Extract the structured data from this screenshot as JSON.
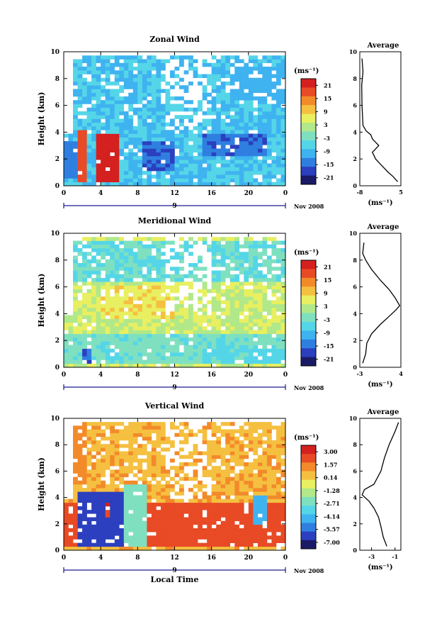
{
  "chart_data": [
    {
      "type": "heatmap",
      "title": "Zonal Wind",
      "ylabel": "Height (km)",
      "xlabel": "",
      "xlim": [
        0,
        24
      ],
      "ylim": [
        0,
        10
      ],
      "x_ticks": [
        "0",
        "4",
        "8",
        "12",
        "16",
        "20",
        "0"
      ],
      "y_ticks": [
        "0",
        "2",
        "4",
        "6",
        "8",
        "10"
      ],
      "date_marker": "9",
      "date_label": "Nov 2008",
      "colorbar": {
        "unit": "(ms⁻¹)",
        "ticks": [
          "21",
          "15",
          "9",
          "3",
          "-3",
          "-9",
          "-15",
          "-21"
        ],
        "range": [
          -24,
          24
        ]
      },
      "fill_value_estimate": -8,
      "regions": [
        {
          "x": [
            1.6,
            2.6
          ],
          "y": [
            0.2,
            4.2
          ],
          "v": 18
        },
        {
          "x": [
            3.5,
            6.0
          ],
          "y": [
            0.3,
            4.0
          ],
          "v": 22
        },
        {
          "x": [
            8.5,
            12.0
          ],
          "y": [
            1.0,
            3.2
          ],
          "v": -16
        },
        {
          "x": [
            0.0,
            1.6
          ],
          "y": [
            0.6,
            3.3
          ],
          "v": -14
        },
        {
          "x": [
            15.0,
            22.0
          ],
          "y": [
            2.2,
            3.8
          ],
          "v": -15
        },
        {
          "x": [
            18.0,
            24.0
          ],
          "y": [
            6.5,
            9.0
          ],
          "v": -10
        }
      ],
      "average_profile": {
        "title": "Average",
        "xlabel": "(ms⁻¹)",
        "xlim": [
          -8,
          5
        ],
        "x_ticks": [
          "-8",
          "5"
        ],
        "y_ticks": [
          "0",
          "2",
          "4",
          "6",
          "8",
          "10"
        ],
        "x": [
          4.0,
          2.5,
          1.0,
          -1.0,
          -3.0,
          -4.0,
          -2.0,
          -4.0,
          -4.5,
          -6.0,
          -7.0,
          -7.3,
          -7.4,
          -7.0,
          -7.3
        ],
        "y": [
          0.3,
          0.7,
          1.0,
          1.5,
          2.0,
          2.5,
          3.0,
          3.5,
          3.8,
          4.1,
          4.5,
          6.0,
          7.5,
          8.5,
          9.5
        ]
      }
    },
    {
      "type": "heatmap",
      "title": "Meridional Wind",
      "ylabel": "Height (km)",
      "xlabel": "",
      "xlim": [
        0,
        24
      ],
      "ylim": [
        0,
        10
      ],
      "x_ticks": [
        "0",
        "4",
        "8",
        "12",
        "16",
        "20",
        "0"
      ],
      "y_ticks": [
        "0",
        "2",
        "4",
        "6",
        "8",
        "10"
      ],
      "date_marker": "9",
      "date_label": "Nov 2008",
      "colorbar": {
        "unit": "(ms⁻¹)",
        "ticks": [
          "21",
          "15",
          "9",
          "3",
          "-3",
          "-9",
          "-15",
          "-21"
        ],
        "range": [
          -24,
          24
        ]
      },
      "fill_value_estimate": 4,
      "regions": [
        {
          "x": [
            0.0,
            24.0
          ],
          "y": [
            6.5,
            9.5
          ],
          "v": -4
        },
        {
          "x": [
            0.0,
            24.0
          ],
          "y": [
            0.2,
            2.5
          ],
          "v": -3
        },
        {
          "x": [
            1.8,
            3.0
          ],
          "y": [
            0.3,
            1.5
          ],
          "v": -15
        },
        {
          "x": [
            4.0,
            12.0
          ],
          "y": [
            3.5,
            6.0
          ],
          "v": 7
        },
        {
          "x": [
            15.0,
            24.0
          ],
          "y": [
            0.3,
            1.8
          ],
          "v": -5
        }
      ],
      "average_profile": {
        "title": "Average",
        "xlabel": "(ms⁻¹)",
        "xlim": [
          -3,
          4
        ],
        "x_ticks": [
          "-3",
          "4"
        ],
        "y_ticks": [
          "0",
          "2",
          "4",
          "6",
          "8",
          "10"
        ],
        "x": [
          -2.5,
          -2.0,
          -1.8,
          -1.0,
          0.5,
          2.0,
          3.2,
          3.8,
          3.0,
          2.0,
          0.5,
          -1.0,
          -2.0,
          -2.5,
          -2.3
        ],
        "y": [
          0.3,
          1.0,
          1.8,
          2.5,
          3.2,
          3.8,
          4.3,
          4.6,
          5.2,
          5.8,
          6.5,
          7.3,
          8.0,
          8.5,
          9.3
        ]
      }
    },
    {
      "type": "heatmap",
      "title": "Vertical Wind",
      "ylabel": "Height (km)",
      "xlabel": "Local Time",
      "xlim": [
        0,
        24
      ],
      "ylim": [
        0,
        10
      ],
      "x_ticks": [
        "0",
        "4",
        "8",
        "12",
        "16",
        "20",
        "0"
      ],
      "y_ticks": [
        "0",
        "2",
        "4",
        "6",
        "8",
        "10"
      ],
      "date_marker": "9",
      "date_label": "Nov 2008",
      "colorbar": {
        "unit": "(ms⁻¹)",
        "ticks": [
          "3.00",
          "1.57",
          "0.14",
          "-1.28",
          "-2.71",
          "-4.14",
          "-5.57",
          "-7.00"
        ],
        "range": [
          -8,
          4
        ]
      },
      "fill_value_estimate": 0.8,
      "regions": [
        {
          "x": [
            0.0,
            24.0
          ],
          "y": [
            0.3,
            3.5
          ],
          "v": 2.5
        },
        {
          "x": [
            1.5,
            6.5
          ],
          "y": [
            0.3,
            4.5
          ],
          "v": -6.5
        },
        {
          "x": [
            4.5,
            5.0
          ],
          "y": [
            2.5,
            3.7
          ],
          "v": 3.0
        },
        {
          "x": [
            6.5,
            9.0
          ],
          "y": [
            0.3,
            5.0
          ],
          "v": -2.5
        },
        {
          "x": [
            20.5,
            22.0
          ],
          "y": [
            2.0,
            4.3
          ],
          "v": -4.5
        },
        {
          "x": [
            1.2,
            2.5
          ],
          "y": [
            5.0,
            10.0
          ],
          "v": 1.5
        }
      ],
      "average_profile": {
        "title": "Average",
        "xlabel": "(ms⁻¹)",
        "xlim": [
          -4,
          -0.5
        ],
        "x_ticks": [
          "-3",
          "-1"
        ],
        "y_ticks": [
          "0",
          "2",
          "4",
          "6",
          "8",
          "10"
        ],
        "x": [
          -1.7,
          -2.0,
          -2.2,
          -2.4,
          -2.8,
          -3.2,
          -3.8,
          -3.6,
          -2.8,
          -2.2,
          -1.9,
          -1.5,
          -1.0,
          -0.7
        ],
        "y": [
          0.3,
          1.0,
          1.8,
          2.5,
          3.2,
          3.7,
          4.2,
          4.6,
          5.0,
          6.0,
          7.0,
          8.0,
          9.0,
          9.7
        ]
      }
    }
  ]
}
